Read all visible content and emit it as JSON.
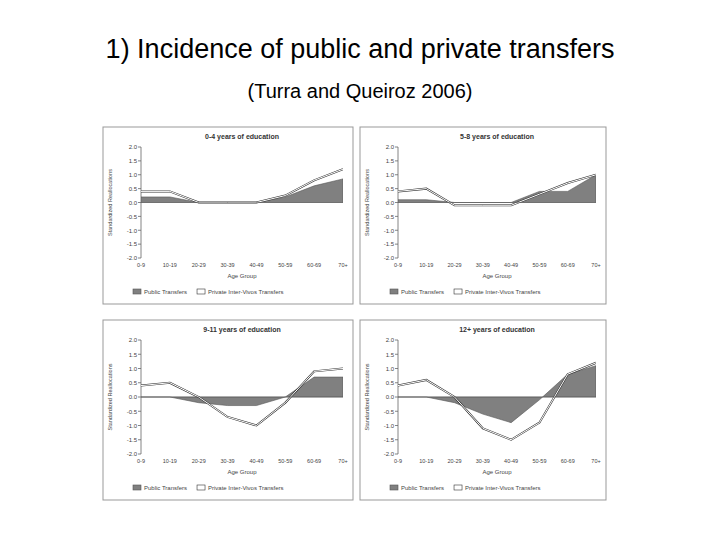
{
  "title": "1) Incidence of public and private transfers",
  "subtitle": "(Turra and Queiroz 2006)",
  "chart_data": [
    {
      "type": "line",
      "title": "0-4 years of education",
      "x_label": "Age Group",
      "y_label": "Standardized Reallocations",
      "categories": [
        "0-9",
        "10-19",
        "20-29",
        "30-39",
        "40-49",
        "50-59",
        "60-69",
        "70+"
      ],
      "series": [
        {
          "name": "Public Transfers",
          "type": "area",
          "color": "#808080",
          "values": [
            0.2,
            0.2,
            0.0,
            0.0,
            0.0,
            0.2,
            0.6,
            0.85
          ]
        },
        {
          "name": "Private Inter-Vivos Transfers",
          "type": "line",
          "color": "#ffffff",
          "values": [
            0.4,
            0.4,
            0.0,
            0.0,
            0.0,
            0.25,
            0.8,
            1.2
          ]
        }
      ],
      "ylim": [
        -2,
        2
      ],
      "yticks": [
        {
          "value": 2,
          "label": "2.0"
        },
        1.5,
        {
          "value": 1,
          "label": "1.0"
        },
        0.5,
        {
          "value": 0,
          "label": "0.0"
        },
        -0.5,
        {
          "value": -1,
          "label": "-1.0"
        },
        -1.5,
        {
          "value": -2,
          "label": "-2.0"
        }
      ],
      "grid": false,
      "legend": "bottom"
    },
    {
      "type": "line",
      "title": "5-8 years of education",
      "x_label": "Age Group",
      "y_label": "Standardized Reallocations",
      "categories": [
        "0-9",
        "10-19",
        "20-29",
        "30-39",
        "40-49",
        "50-59",
        "60-69",
        "70+"
      ],
      "series": [
        {
          "name": "Public Transfers",
          "type": "area",
          "color": "#808080",
          "values": [
            0.1,
            0.1,
            0.0,
            0.0,
            0.0,
            0.4,
            0.4,
            1.0
          ]
        },
        {
          "name": "Private Inter-Vivos Transfers",
          "type": "line",
          "color": "#ffffff",
          "values": [
            0.4,
            0.5,
            -0.1,
            -0.1,
            -0.1,
            0.3,
            0.7,
            1.0
          ]
        }
      ],
      "ylim": [
        -2,
        2
      ],
      "yticks": [
        {
          "value": 2,
          "label": "2.0"
        },
        1.5,
        {
          "value": 1,
          "label": "1.0"
        },
        0.5,
        {
          "value": 0,
          "label": "0.0"
        },
        -0.5,
        {
          "value": -1,
          "label": "-1.0"
        },
        -1.5,
        {
          "value": -2,
          "label": "-2.0"
        }
      ],
      "grid": false,
      "legend": "bottom"
    },
    {
      "type": "line",
      "title": "9-11 years of education",
      "x_label": "Age Group",
      "y_label": "Standardized Reallocations",
      "categories": [
        "0-9",
        "10-19",
        "20-29",
        "30-39",
        "40-49",
        "50-59",
        "60-69",
        "70+"
      ],
      "series": [
        {
          "name": "Public Transfers",
          "type": "area",
          "color": "#808080",
          "values": [
            0.0,
            0.0,
            -0.2,
            -0.3,
            -0.3,
            0.0,
            0.7,
            0.7
          ]
        },
        {
          "name": "Private Inter-Vivos Transfers",
          "type": "line",
          "color": "#ffffff",
          "values": [
            0.4,
            0.5,
            0.0,
            -0.7,
            -1.0,
            -0.2,
            0.9,
            1.0
          ]
        }
      ],
      "ylim": [
        -2,
        2
      ],
      "yticks": [
        {
          "value": 2,
          "label": "2.0"
        },
        1.5,
        {
          "value": 1,
          "label": "1.0"
        },
        0.5,
        {
          "value": 0,
          "label": "0.0"
        },
        -0.5,
        {
          "value": -1,
          "label": "-1.0"
        },
        -1.5,
        {
          "value": -2,
          "label": "-2.0"
        }
      ],
      "grid": false,
      "legend": "bottom"
    },
    {
      "type": "line",
      "title": "12+ years of education",
      "x_label": "Age Group",
      "y_label": "Standardized Reallocations",
      "categories": [
        "0-9",
        "10-19",
        "20-29",
        "30-39",
        "40-49",
        "50-59",
        "60-69",
        "70+"
      ],
      "series": [
        {
          "name": "Public Transfers",
          "type": "area",
          "color": "#808080",
          "values": [
            0.0,
            0.0,
            -0.2,
            -0.6,
            -0.9,
            -0.1,
            0.8,
            1.1
          ]
        },
        {
          "name": "Private Inter-Vivos Transfers",
          "type": "line",
          "color": "#ffffff",
          "values": [
            0.4,
            0.6,
            0.0,
            -1.1,
            -1.5,
            -0.9,
            0.8,
            1.2
          ]
        }
      ],
      "ylim": [
        -2,
        2
      ],
      "yticks": [
        {
          "value": 2,
          "label": "2.0"
        },
        1.5,
        {
          "value": 1,
          "label": "1.0"
        },
        0.5,
        {
          "value": 0,
          "label": "0.0"
        },
        -0.5,
        {
          "value": -1,
          "label": "-1.0"
        },
        -1.5,
        {
          "value": -2,
          "label": "-2.0"
        }
      ],
      "grid": false,
      "legend": "bottom"
    }
  ]
}
